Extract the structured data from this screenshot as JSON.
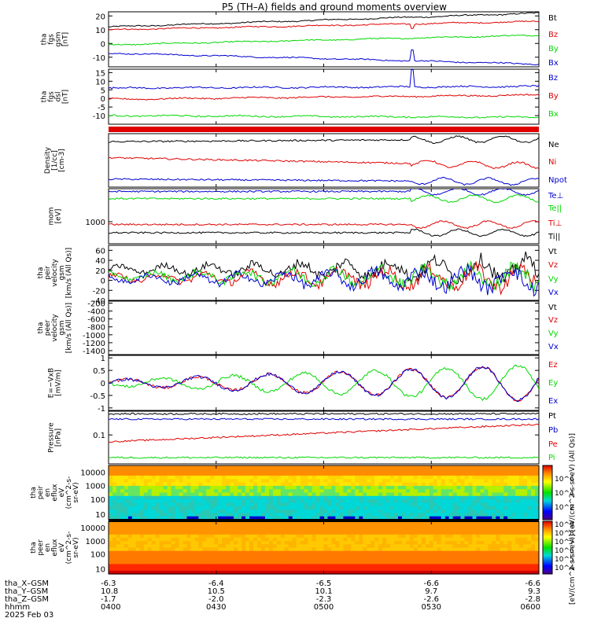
{
  "title": "P5 (TH–A) fields and ground moments overview",
  "colors": {
    "black": "#000000",
    "red": "#e00000",
    "green": "#00d800",
    "blue": "#0000d0",
    "cyan": "#00d8d8"
  },
  "chart_data": [
    {
      "type": "line",
      "panel": "fgs_gsm",
      "ylabel": [
        "tha",
        "fgs",
        "gsm",
        "[nT]"
      ],
      "ylim": [
        -17,
        23
      ],
      "yticks": [
        20,
        10,
        0,
        -10
      ],
      "series": [
        {
          "name": "Bt",
          "color": "#000000",
          "start": 12,
          "end": 22
        },
        {
          "name": "Bz",
          "color": "#e00000",
          "start": 10,
          "end": 16
        },
        {
          "name": "By",
          "color": "#00d800",
          "start": -1,
          "end": 6
        },
        {
          "name": "Bx",
          "color": "#0000d0",
          "start": -7,
          "end": -15
        }
      ]
    },
    {
      "type": "line",
      "panel": "fgs_dsl",
      "ylabel": [
        "tha",
        "fgs",
        "dsl",
        "[nT]"
      ],
      "ylim": [
        -15,
        17
      ],
      "yticks": [
        15,
        10,
        5,
        0,
        -5,
        -10
      ],
      "series": [
        {
          "name": "Bz",
          "color": "#0000d0",
          "start": 6,
          "end": 7
        },
        {
          "name": "By",
          "color": "#e00000",
          "start": -0.5,
          "end": 2
        },
        {
          "name": "Bx",
          "color": "#00d800",
          "start": -10,
          "end": -11
        }
      ]
    },
    {
      "type": "line",
      "panel": "density",
      "ylabel": [
        "Density",
        "[1/cc]",
        "[cm-3]"
      ],
      "ylim": [
        0,
        1
      ],
      "yticks": [],
      "series": [
        {
          "name": "Ne",
          "color": "#000000",
          "start": 0.85,
          "end": 0.9
        },
        {
          "name": "Ni",
          "color": "#e00000",
          "start": 0.55,
          "end": 0.4
        },
        {
          "name": "Npot",
          "color": "#0000d0",
          "start": 0.15,
          "end": 0.1
        }
      ]
    },
    {
      "type": "line",
      "panel": "temperature",
      "ylabel": [
        "mom",
        "[eV]"
      ],
      "ylim": [
        0,
        1
      ],
      "yticks": [
        1000
      ],
      "series": [
        {
          "name": "Te⊥",
          "color": "#0000d0",
          "start": 0.95
        },
        {
          "name": "Te||",
          "color": "#00d800",
          "start": 0.82
        },
        {
          "name": "Ti⊥",
          "color": "#e00000",
          "start": 0.35
        },
        {
          "name": "Ti||",
          "color": "#000000",
          "start": 0.2
        }
      ]
    },
    {
      "type": "line",
      "panel": "peir_velocity",
      "ylabel": [
        "tha",
        "peir",
        "velocity",
        "gsm",
        "[km/s (All Qs)]"
      ],
      "ylim": [
        -40,
        70
      ],
      "yticks": [
        60,
        40,
        20,
        0,
        -20,
        -40
      ],
      "series": [
        {
          "name": "Vt",
          "color": "#000000"
        },
        {
          "name": "Vz",
          "color": "#e00000"
        },
        {
          "name": "Vy",
          "color": "#00d800"
        },
        {
          "name": "Vx",
          "color": "#0000d0"
        }
      ]
    },
    {
      "type": "line",
      "panel": "peer_velocity",
      "ylabel": [
        "tha",
        "peer",
        "velocity",
        "gsm",
        "[km/s (All Qs)]"
      ],
      "ylim": [
        -1500,
        -150
      ],
      "yticks": [
        -200,
        -400,
        -600,
        -800,
        -1000,
        -1200,
        -1400
      ],
      "series": [
        {
          "name": "Vt",
          "color": "#000000"
        },
        {
          "name": "Vz",
          "color": "#e00000"
        },
        {
          "name": "Vy",
          "color": "#00d800"
        },
        {
          "name": "Vx",
          "color": "#0000d0"
        }
      ]
    },
    {
      "type": "line",
      "panel": "efield",
      "ylabel": [
        "E=−VxB",
        "[mV/m]"
      ],
      "ylim": [
        -1.1,
        1.1
      ],
      "yticks": [
        1.0,
        0.5,
        0.0,
        -0.5,
        -1.0
      ],
      "series": [
        {
          "name": "Ez",
          "color": "#e00000"
        },
        {
          "name": "Ey",
          "color": "#00d800"
        },
        {
          "name": "Ex",
          "color": "#0000d0"
        }
      ]
    },
    {
      "type": "line",
      "panel": "pressure",
      "ylabel": [
        "Pressure",
        "[nPa]"
      ],
      "ylim": [
        0,
        1
      ],
      "yticks": [
        0.1
      ],
      "series": [
        {
          "name": "Pt",
          "color": "#000000",
          "start": 0.95
        },
        {
          "name": "Pb",
          "color": "#0000d0",
          "start": 0.85
        },
        {
          "name": "Pe",
          "color": "#e00000",
          "start": 0.42,
          "end": 0.75
        },
        {
          "name": "Pi",
          "color": "#00d800",
          "start": 0.12
        }
      ]
    },
    {
      "type": "heatmap",
      "panel": "peir_spec",
      "ylabel": [
        "tha",
        "peir",
        "en",
        "eflux",
        "eV",
        "(cm^2-s-",
        "sr-eV)"
      ],
      "yticks": [
        "10000",
        "1000",
        "100",
        "10"
      ],
      "scale": "log"
    },
    {
      "type": "heatmap",
      "panel": "peer_spec",
      "ylabel": [
        "tha",
        "peer",
        "en",
        "eflux",
        "eV",
        "(cm^2-s-",
        "sr-eV)"
      ],
      "yticks": [
        "10000",
        "1000",
        "100",
        "10"
      ],
      "scale": "log"
    }
  ],
  "colorbar": {
    "label": "[eV/(cm^2-s-sr-eV)] [eV/(cm^2-s-sr-eV) (All Qs)]",
    "upper_ticks": [
      "10^6",
      "10^4",
      "10^2"
    ],
    "lower_ticks": [
      "10^9",
      "10^8",
      "10^7",
      "10^6",
      "10^5",
      "10^4"
    ]
  },
  "xaxis": {
    "row_labels": [
      "tha_X–GSM",
      "tha_Y–GSM",
      "tha_Z–GSM",
      "hhmm",
      "2025 Feb 03"
    ],
    "ticks": [
      {
        "x": "-6.3",
        "y": "10.8",
        "z": "-1.7",
        "t": "0400"
      },
      {
        "x": "-6.4",
        "y": "10.5",
        "z": "-2.0",
        "t": "0430"
      },
      {
        "x": "-6.5",
        "y": "10.1",
        "z": "-2.3",
        "t": "0500"
      },
      {
        "x": "-6.6",
        "y": "9.7",
        "z": "-2.6",
        "t": "0530"
      },
      {
        "x": "-6.6",
        "y": "9.3",
        "z": "-2.8",
        "t": "0600"
      }
    ]
  }
}
